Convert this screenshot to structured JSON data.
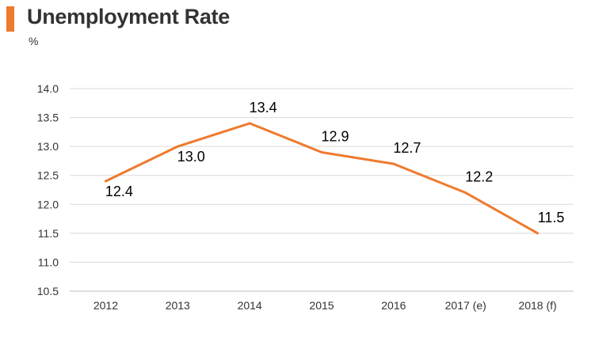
{
  "header": {
    "title": "Unemployment Rate",
    "unit": "%"
  },
  "colors": {
    "accent": "#ee7a2e",
    "line": "#ee7a2e",
    "grid": "#d9d9d9",
    "axis": "#bfbfbf",
    "text": "#333333"
  },
  "chart_data": {
    "type": "line",
    "title": "Unemployment Rate",
    "ylabel": "%",
    "xlabel": "",
    "categories": [
      "2012",
      "2013",
      "2014",
      "2015",
      "2016",
      "2017 (e)",
      "2018 (f)"
    ],
    "values": [
      12.4,
      13.0,
      13.4,
      12.9,
      12.7,
      12.2,
      11.5
    ],
    "data_labels": [
      "12.4",
      "13.0",
      "13.4",
      "12.9",
      "12.7",
      "12.2",
      "11.5"
    ],
    "ylim": [
      10.5,
      14.0
    ],
    "yticks": [
      "10.5",
      "11.0",
      "11.5",
      "12.0",
      "12.5",
      "13.0",
      "13.5",
      "14.0"
    ],
    "grid": true,
    "legend": "none"
  }
}
